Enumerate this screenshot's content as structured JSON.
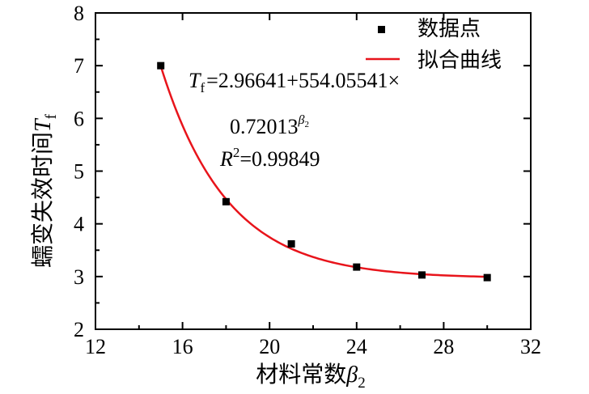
{
  "chart_data": {
    "type": "scatter",
    "title": "",
    "xlabel": "材料常数",
    "xlabel_symbol": "β",
    "xlabel_subscript": "2",
    "ylabel": "蠕变失效时间",
    "ylabel_symbol": "T",
    "ylabel_subscript": "f",
    "xlim": [
      12,
      32
    ],
    "ylim": [
      2,
      8
    ],
    "xticks": [
      "12",
      "16",
      "20",
      "24",
      "28",
      "32"
    ],
    "yticks": [
      "2",
      "3",
      "4",
      "5",
      "6",
      "7",
      "8"
    ],
    "grid": false,
    "legend_position": "top-right",
    "series": [
      {
        "name": "数据点",
        "kind": "scatter",
        "color": "#000000",
        "x": [
          15,
          18,
          21,
          24,
          27,
          30
        ],
        "y": [
          7.0,
          4.42,
          3.62,
          3.18,
          3.03,
          2.98
        ]
      },
      {
        "name": "拟合曲线",
        "kind": "line",
        "color": "#e8141b",
        "model": {
          "a": 2.96641,
          "b": 554.05541,
          "c": 0.72013
        },
        "x_range": [
          15,
          30
        ]
      }
    ],
    "annotation": {
      "line1_symbol": "T",
      "line1_sub": "f",
      "line1_text": "=2.96641+554.05541×",
      "line2_text": "0.72013",
      "line2_sup_symbol": "β",
      "line2_sup_sub": "2",
      "line3_symbol": "R",
      "line3_sup": "2",
      "line3_text": "=0.99849"
    }
  }
}
